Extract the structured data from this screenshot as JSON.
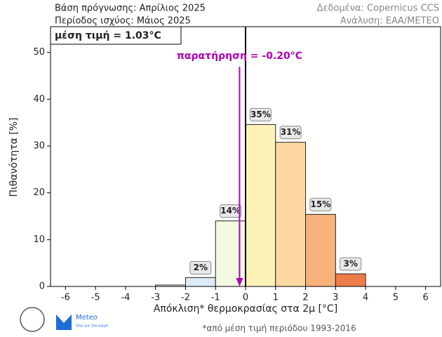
{
  "header": {
    "left": [
      "Βάση πρόγνωσης: Απρίλιος 2025",
      "Περίοδος ισχύος: Μάιος 2025"
    ],
    "right": [
      "Δεδομένα: Copernicus CCS",
      "Ανάλυση: ΕΑΑ/METEO"
    ]
  },
  "chart_data": {
    "type": "histogram",
    "bins": [
      -6,
      -5,
      -4,
      -3,
      -2,
      -1,
      0,
      1,
      2,
      3,
      4,
      5,
      6
    ],
    "values": [
      0,
      0,
      0,
      0.3,
      1.9,
      14,
      34.6,
      30.8,
      15.4,
      2.7,
      0,
      0
    ],
    "value_labels": [
      null,
      null,
      null,
      null,
      "2%",
      "14%",
      "35%",
      "31%",
      "15%",
      "3%",
      null,
      null
    ],
    "colors": [
      "#dcebf7",
      "#dcebf7",
      "#dcebf7",
      "#dcebf7",
      "#dcebf7",
      "#f3f8e1",
      "#fdf3b9",
      "#fdd9a1",
      "#f8b27b",
      "#ee7c4b",
      "#ee7c4b",
      "#ee7c4b"
    ],
    "xlim": [
      -6.5,
      6.5
    ],
    "xticks": [
      -6,
      -5,
      -4,
      -3,
      -2,
      -1,
      0,
      1,
      2,
      3,
      4,
      5,
      6
    ],
    "ylim": [
      0,
      55.5
    ],
    "yticks": [
      0,
      10,
      20,
      30,
      40,
      50
    ],
    "xlabel": "Απόκλιση* θερμοκρασίας στα 2μ [°C]",
    "ylabel": "Πιθανότητα [%]",
    "mean_label": "μέση τιμή = 1.03°C",
    "reference_x": 0,
    "observation": {
      "value": -0.2,
      "label": "παρατήρηση = -0.20°C",
      "color": "#b000b5"
    }
  },
  "footnote": "*από μέση τιμή περιόδου 1993-2016",
  "logo": {
    "name": "Meteo",
    "tagline": "Όλα για τον καιρό"
  }
}
